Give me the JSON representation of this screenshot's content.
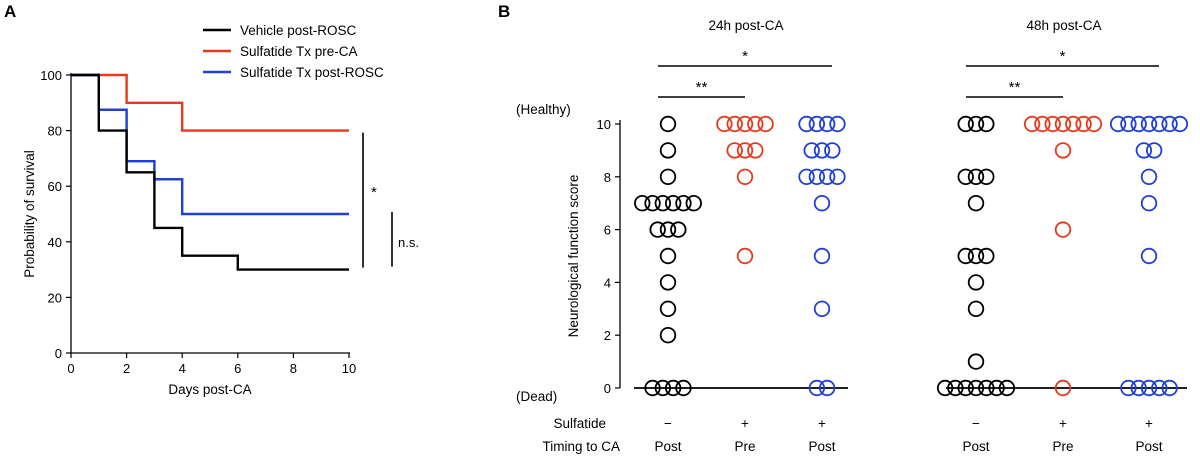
{
  "panel_a_label": "A",
  "panel_b_label": "B",
  "colors": {
    "vehicle": "#000000",
    "pre": "#e8391c",
    "post": "#1f3fd6",
    "axis": "#000000"
  },
  "chart_data": [
    {
      "type": "line",
      "subtype": "kaplan-meier step",
      "title": "",
      "xlabel": "Days post-CA",
      "ylabel": "Probability of survival",
      "xlim": [
        0,
        10
      ],
      "ylim": [
        0,
        100
      ],
      "xticks": [
        0,
        2,
        4,
        6,
        8,
        10
      ],
      "yticks": [
        0,
        20,
        40,
        60,
        80,
        100
      ],
      "legend_position": "top-right",
      "series": [
        {
          "name": "Vehicle post-ROSC",
          "color": "#000000",
          "x": [
            0,
            1,
            2,
            3,
            4,
            6,
            10
          ],
          "y": [
            100,
            80,
            65,
            45,
            35,
            30,
            30
          ]
        },
        {
          "name": "Sulfatide Tx pre-CA",
          "color": "#e8391c",
          "x": [
            0,
            2,
            4,
            10
          ],
          "y": [
            100,
            90,
            80,
            80
          ]
        },
        {
          "name": "Sulfatide Tx post-ROSC",
          "color": "#1f3fd6",
          "x": [
            0,
            1,
            2,
            3,
            4,
            10
          ],
          "y": [
            100,
            87.5,
            69,
            62.5,
            50,
            50
          ]
        }
      ],
      "annotations": [
        {
          "text": "*",
          "from_y": 80,
          "to_y": 30
        },
        {
          "text": "n.s.",
          "from_y": 50,
          "to_y": 30
        }
      ]
    },
    {
      "type": "scatter",
      "subtype": "dot plot",
      "ylabel": "Neurological function score",
      "ylim": [
        0,
        10
      ],
      "yticks": [
        0,
        2,
        4,
        6,
        8,
        10
      ],
      "ytop_label": "(Healthy)",
      "ybottom_label": "(Dead)",
      "row_labels": [
        "Sulfatide",
        "Timing to CA"
      ],
      "panels": [
        {
          "title": "24h post-CA",
          "groups": [
            {
              "sulfatide": "−",
              "timing": "Post",
              "color": "#000000",
              "values": [
                10,
                9,
                8,
                7,
                7,
                7,
                7,
                7,
                7,
                6,
                6,
                6,
                5,
                4,
                3,
                2,
                0,
                0,
                0,
                0
              ]
            },
            {
              "sulfatide": "+",
              "timing": "Pre",
              "color": "#e8391c",
              "values": [
                10,
                10,
                10,
                10,
                10,
                9,
                9,
                9,
                8,
                5
              ]
            },
            {
              "sulfatide": "+",
              "timing": "Post",
              "color": "#1f3fd6",
              "values": [
                10,
                10,
                10,
                10,
                9,
                9,
                9,
                8,
                8,
                8,
                8,
                7,
                5,
                3,
                0,
                0
              ]
            }
          ],
          "significance": [
            {
              "text": "**",
              "from_group": 0,
              "to_group": 1
            },
            {
              "text": "*",
              "from_group": 0,
              "to_group": 2
            }
          ]
        },
        {
          "title": "48h post-CA",
          "groups": [
            {
              "sulfatide": "−",
              "timing": "Post",
              "color": "#000000",
              "values": [
                10,
                10,
                10,
                8,
                8,
                8,
                7,
                5,
                5,
                5,
                4,
                3,
                1,
                0,
                0,
                0,
                0,
                0,
                0,
                0
              ]
            },
            {
              "sulfatide": "+",
              "timing": "Pre",
              "color": "#e8391c",
              "values": [
                10,
                10,
                10,
                10,
                10,
                10,
                10,
                9,
                6,
                0
              ]
            },
            {
              "sulfatide": "+",
              "timing": "Post",
              "color": "#1f3fd6",
              "values": [
                10,
                10,
                10,
                10,
                10,
                10,
                10,
                9,
                9,
                8,
                7,
                5,
                0,
                0,
                0,
                0,
                0
              ]
            }
          ],
          "significance": [
            {
              "text": "**",
              "from_group": 0,
              "to_group": 1
            },
            {
              "text": "*",
              "from_group": 0,
              "to_group": 2
            }
          ]
        }
      ]
    }
  ]
}
